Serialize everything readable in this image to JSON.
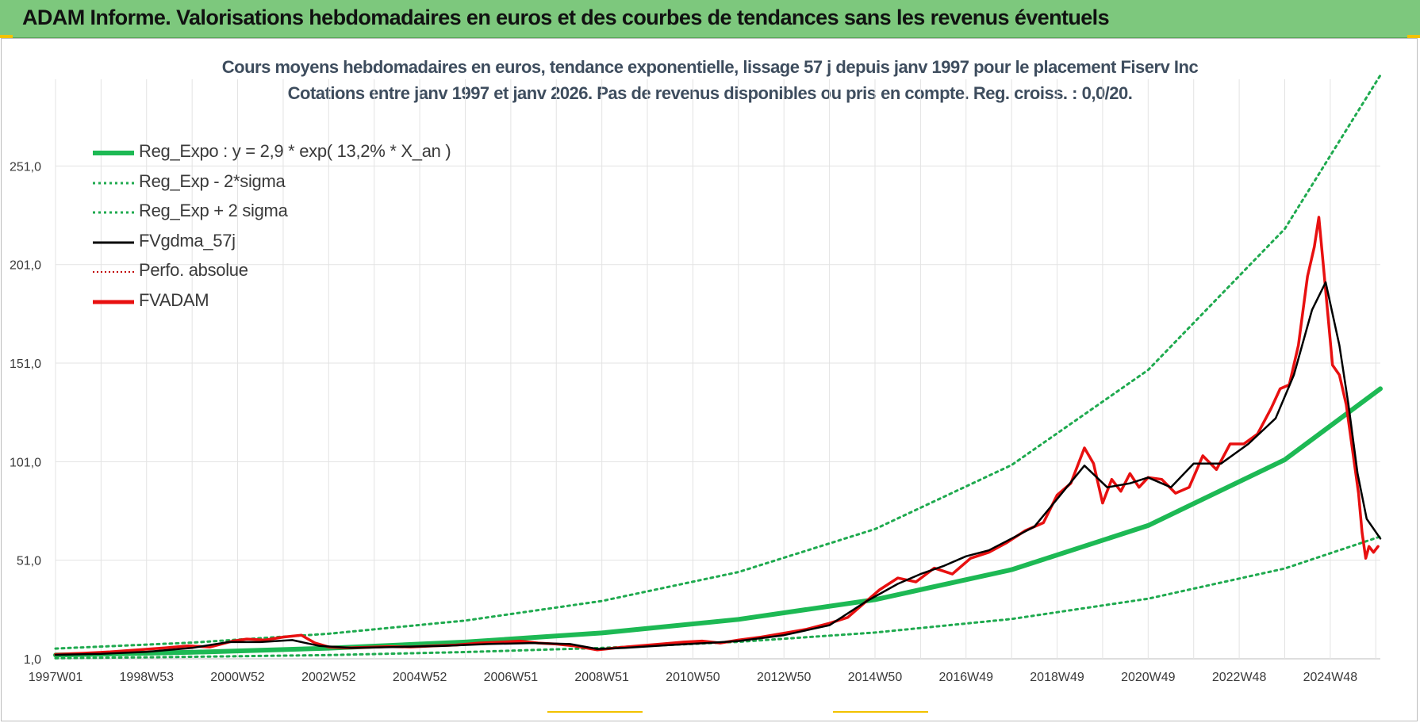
{
  "banner": {
    "title": "ADAM Informe. Valorisations hebdomadaires en euros et des courbes de tendances sans les revenus éventuels"
  },
  "colors": {
    "banner_bg": "#7dc87d",
    "reg_expo": "#1db954",
    "reg_bands": "#1faa4f",
    "smooth": "#000000",
    "perfo": "#c00000",
    "fvadam": "#e81010",
    "grid": "#e3e3e3",
    "title": "#3e4d5e"
  },
  "chart_data": {
    "type": "line",
    "title": "Cours moyens hebdomadaires en euros, tendance exponentielle, lissage 57 j depuis janv 1997  pour le placement Fiserv Inc",
    "subtitle": "Cotations entre janv 1997 et janv 2026. Pas de revenus disponibles ou pris en compte. Reg. croiss. : 0,0/20.",
    "xlabel": "",
    "ylabel": "",
    "x_range": [
      1997.0,
      2026.1
    ],
    "ylim": [
      1,
      295
    ],
    "yticks": [
      1,
      51,
      101,
      151,
      201,
      251
    ],
    "ytick_labels": [
      "1,0",
      "51,0",
      "101,0",
      "151,0",
      "201,0",
      "251,0"
    ],
    "xtick_labels": [
      "1997W01",
      "1998W53",
      "2000W52",
      "2002W52",
      "2004W52",
      "2006W51",
      "2008W51",
      "2010W50",
      "2012W50",
      "2014W50",
      "2016W49",
      "2018W49",
      "2020W49",
      "2022W48",
      "2024W48"
    ],
    "xtick_years": [
      1997,
      1999,
      2001,
      2003,
      2005,
      2007,
      2009,
      2011,
      2013,
      2015,
      2017,
      2019,
      2021,
      2023,
      2025
    ],
    "grid": true,
    "legend_position": "top-left",
    "series": [
      {
        "name": "Reg_Expo : y = 2,9 * exp( 13,2% *  X_an )",
        "style": "solid-thick",
        "x": [
          1997,
          2000,
          2003,
          2006,
          2009,
          2012,
          2015,
          2018,
          2021,
          2024,
          2026.1
        ],
        "y": [
          2.9,
          4.3,
          6.4,
          9.5,
          14.1,
          21.0,
          31.0,
          46.2,
          68.6,
          102.0,
          138.0
        ]
      },
      {
        "name": "Reg_Exp - 2*sigma",
        "style": "dotted",
        "x": [
          1997,
          2000,
          2003,
          2006,
          2009,
          2012,
          2015,
          2018,
          2021,
          2024,
          2026.1
        ],
        "y": [
          1.3,
          2.0,
          2.9,
          4.4,
          6.5,
          9.6,
          14.3,
          21.2,
          31.5,
          46.8,
          63.0
        ]
      },
      {
        "name": "Reg_Exp + 2 sigma",
        "style": "dotted",
        "x": [
          1997,
          2000,
          2003,
          2006,
          2009,
          2012,
          2015,
          2018,
          2021,
          2024,
          2026.1
        ],
        "y": [
          6.2,
          9.2,
          13.7,
          20.4,
          30.3,
          45.0,
          66.8,
          99.3,
          147.5,
          219.1,
          297.0
        ]
      },
      {
        "name": "FVgdma_57j",
        "style": "solid",
        "x": [
          1997.0,
          1998.0,
          1999.0,
          2000.0,
          2000.8,
          2001.5,
          2002.2,
          2002.8,
          2003.5,
          2004.5,
          2005.5,
          2006.5,
          2007.5,
          2008.3,
          2008.9,
          2009.5,
          2010.5,
          2011.3,
          2012.0,
          2013.0,
          2014.0,
          2014.8,
          2015.5,
          2016.0,
          2016.5,
          2017.0,
          2017.5,
          2018.0,
          2018.5,
          2019.0,
          2019.6,
          2020.1,
          2020.6,
          2021.0,
          2021.5,
          2022.0,
          2022.6,
          2023.2,
          2023.8,
          2024.2,
          2024.6,
          2024.9,
          2025.2,
          2025.4,
          2025.6,
          2025.8,
          2026.1
        ],
        "y": [
          3.0,
          3.5,
          4.5,
          6.5,
          9.5,
          9.5,
          10.5,
          7.5,
          6.5,
          7.0,
          7.5,
          8.5,
          9.0,
          8.5,
          6.0,
          6.5,
          8.0,
          9.0,
          10.0,
          13.0,
          18.0,
          30.0,
          39.0,
          44.0,
          48.0,
          53.0,
          56.0,
          62.0,
          68.0,
          82.0,
          99.0,
          88.0,
          90.0,
          93.0,
          88.0,
          100.0,
          100.0,
          110.0,
          123.0,
          145.0,
          178.0,
          192.0,
          160.0,
          130.0,
          95.0,
          72.0,
          62.0
        ]
      },
      {
        "name": "Perfo. absolue",
        "style": "dotted",
        "x": [],
        "y": []
      },
      {
        "name": "FVADAM",
        "style": "solid-thick",
        "x": [
          1997.0,
          1997.6,
          1998.2,
          1998.8,
          1999.4,
          1999.9,
          2000.4,
          2000.9,
          2001.2,
          2001.6,
          2002.0,
          2002.4,
          2002.7,
          2003.0,
          2003.4,
          2003.8,
          2004.3,
          2004.8,
          2005.3,
          2005.8,
          2006.3,
          2006.8,
          2007.2,
          2007.6,
          2008.0,
          2008.4,
          2008.9,
          2009.3,
          2009.8,
          2010.3,
          2010.8,
          2011.2,
          2011.6,
          2012.0,
          2012.5,
          2013.0,
          2013.5,
          2014.0,
          2014.4,
          2014.8,
          2015.1,
          2015.5,
          2015.9,
          2016.3,
          2016.7,
          2017.1,
          2017.5,
          2017.9,
          2018.3,
          2018.7,
          2019.0,
          2019.3,
          2019.6,
          2019.8,
          2020.0,
          2020.2,
          2020.4,
          2020.6,
          2020.8,
          2021.0,
          2021.3,
          2021.6,
          2021.9,
          2022.2,
          2022.5,
          2022.8,
          2023.1,
          2023.4,
          2023.7,
          2023.9,
          2024.1,
          2024.3,
          2024.5,
          2024.65,
          2024.75,
          2024.85,
          2024.95,
          2025.05,
          2025.2,
          2025.35,
          2025.5,
          2025.62,
          2025.7,
          2025.78,
          2025.85,
          2025.95,
          2026.05
        ],
        "y": [
          3.2,
          3.8,
          4.5,
          5.5,
          6.5,
          7.5,
          7.0,
          10.0,
          11.0,
          10.5,
          12.0,
          13.0,
          9.0,
          7.0,
          6.5,
          6.8,
          7.2,
          7.0,
          7.5,
          8.0,
          9.0,
          9.5,
          10.0,
          9.0,
          8.5,
          7.5,
          5.5,
          6.5,
          7.5,
          8.5,
          9.5,
          10.0,
          9.0,
          10.5,
          12.0,
          14.0,
          16.0,
          19.0,
          22.0,
          30.0,
          36.0,
          42.0,
          40.0,
          47.0,
          44.0,
          52.0,
          55.0,
          60.0,
          66.0,
          70.0,
          84.0,
          90.0,
          108.0,
          100.0,
          80.0,
          92.0,
          86.0,
          95.0,
          88.0,
          93.0,
          92.0,
          85.0,
          88.0,
          104.0,
          97.0,
          110.0,
          110.0,
          115.0,
          128.0,
          138.0,
          140.0,
          160.0,
          195.0,
          210.0,
          225.0,
          200.0,
          175.0,
          150.0,
          145.0,
          130.0,
          105.0,
          85.0,
          65.0,
          52.0,
          58.0,
          55.0,
          58.0
        ]
      }
    ]
  }
}
